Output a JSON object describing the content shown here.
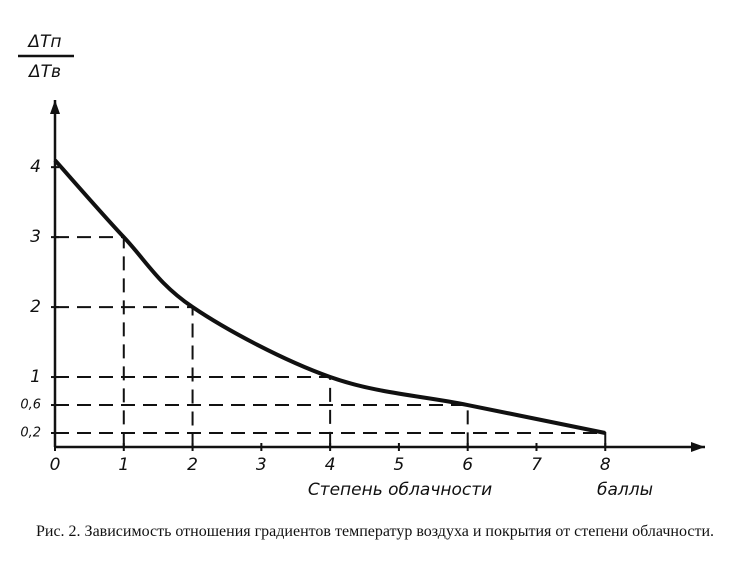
{
  "chart_data": {
    "type": "line",
    "y_label_numerator": "ΔTп",
    "y_label_denominator": "ΔTв",
    "x_label": "Степень облачности",
    "x_unit": "баллы",
    "caption": "Рис. 2. Зависимость отношения градиентов температур воздуха и покрытия от степени облачности.",
    "x": [
      0,
      1,
      2,
      4,
      6,
      8
    ],
    "series": [
      {
        "color": "#111111",
        "values": [
          4.1,
          3,
          2,
          1,
          0.6,
          0.2
        ]
      }
    ],
    "xlim": [
      0,
      9.45
    ],
    "ylim": [
      0,
      4.96
    ],
    "xticks": [
      0,
      1,
      2,
      3,
      4,
      5,
      6,
      7,
      8
    ],
    "yticks": [
      {
        "value": 0.2,
        "label": "0,2"
      },
      {
        "value": 0.6,
        "label": "0,6"
      },
      1,
      2,
      3,
      4
    ]
  }
}
